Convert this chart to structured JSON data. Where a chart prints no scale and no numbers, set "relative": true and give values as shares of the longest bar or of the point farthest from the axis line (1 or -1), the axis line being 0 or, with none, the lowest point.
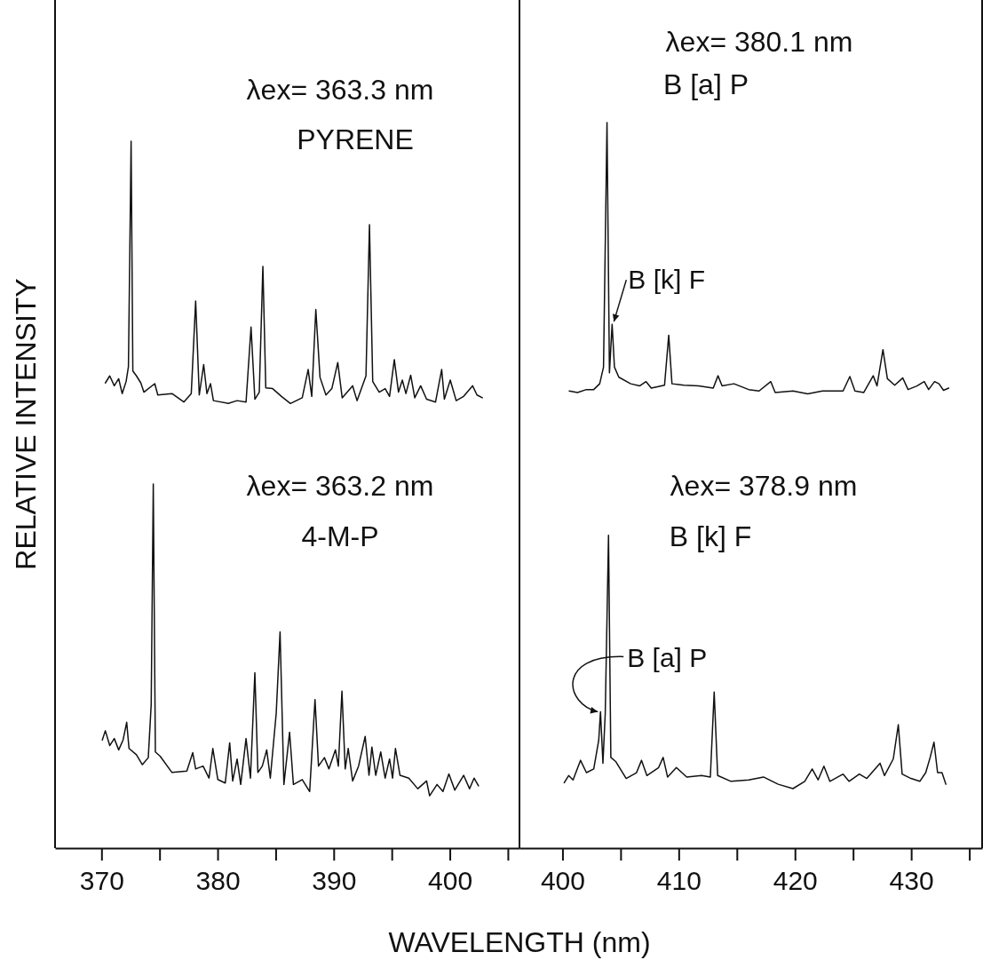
{
  "chart_data": [
    {
      "type": "line",
      "xlabel": "WAVELENGTH (nm)",
      "ylabel": "RELATIVE INTENSITY",
      "relative": true,
      "xlim": [
        366.0,
        406.0
      ],
      "xticks": [
        370,
        {
          "value": 375,
          "label": null
        },
        380,
        {
          "value": 385,
          "label": null
        },
        390,
        {
          "value": 395,
          "label": null
        },
        400,
        {
          "value": 405,
          "label": null
        }
      ],
      "annotations": [
        "λex= 363.3 nm",
        "λex= 363.2 nm"
      ],
      "series": [
        {
          "name": "PYRENE",
          "color": "#111111",
          "x": [
            370.33,
            370.71,
            371.1,
            371.48,
            371.78,
            372.12,
            372.32,
            372.55,
            372.7,
            373.01,
            373.39,
            373.65,
            374.59,
            374.85,
            376.07,
            377.09,
            377.73,
            378.11,
            378.42,
            378.8,
            379.08,
            379.39,
            379.64,
            380.92,
            381.68,
            382.45,
            382.88,
            383.21,
            383.59,
            383.9,
            384.15,
            384.74,
            385.5,
            386.27,
            387.29,
            387.8,
            388.11,
            388.46,
            388.82,
            389.33,
            389.84,
            390.35,
            390.73,
            391.63,
            392.01,
            392.78,
            393.08,
            393.36,
            393.92,
            394.43,
            394.81,
            395.22,
            395.58,
            395.91,
            396.22,
            396.63,
            396.98,
            397.49,
            398.0,
            398.77,
            399.3,
            399.53,
            400.04,
            400.55,
            401.19,
            401.96,
            402.34,
            402.8
          ],
          "values": [
            0.658,
            0.668,
            0.654,
            0.664,
            0.643,
            0.66,
            0.681,
            1.0,
            0.675,
            0.668,
            0.658,
            0.645,
            0.657,
            0.641,
            0.643,
            0.631,
            0.643,
            0.774,
            0.641,
            0.684,
            0.643,
            0.657,
            0.633,
            0.629,
            0.633,
            0.631,
            0.737,
            0.635,
            0.645,
            0.823,
            0.651,
            0.65,
            0.639,
            0.629,
            0.637,
            0.677,
            0.639,
            0.762,
            0.666,
            0.641,
            0.65,
            0.687,
            0.637,
            0.654,
            0.633,
            0.668,
            0.882,
            0.66,
            0.645,
            0.65,
            0.639,
            0.691,
            0.645,
            0.662,
            0.643,
            0.669,
            0.637,
            0.654,
            0.635,
            0.631,
            0.677,
            0.635,
            0.662,
            0.633,
            0.639,
            0.654,
            0.641,
            0.637
          ]
        },
        {
          "name": "4-M-P",
          "color": "#111111",
          "x": [
            370.07,
            370.33,
            370.71,
            371.1,
            371.48,
            371.86,
            372.17,
            372.37,
            373.01,
            373.52,
            374.03,
            374.28,
            374.46,
            374.64,
            375.05,
            376.07,
            377.35,
            377.86,
            378.11,
            378.75,
            379.26,
            379.59,
            380.02,
            380.66,
            381.04,
            381.3,
            381.68,
            381.99,
            382.45,
            382.83,
            383.21,
            383.47,
            383.85,
            384.23,
            384.54,
            385.05,
            385.38,
            385.71,
            386.2,
            386.53,
            387.29,
            387.93,
            388.39,
            388.69,
            389.2,
            389.59,
            390.15,
            390.4,
            390.71,
            390.99,
            391.25,
            391.63,
            392.14,
            392.71,
            393.04,
            393.29,
            393.62,
            394.05,
            394.43,
            394.81,
            395.07,
            395.32,
            395.71,
            396.47,
            397.24,
            398.0,
            398.26,
            398.9,
            399.41,
            399.92,
            400.43,
            401.19,
            401.7,
            402.09,
            402.47
          ],
          "values": [
            0.153,
            0.166,
            0.145,
            0.155,
            0.139,
            0.153,
            0.178,
            0.141,
            0.132,
            0.118,
            0.128,
            0.203,
            0.515,
            0.136,
            0.13,
            0.107,
            0.109,
            0.135,
            0.112,
            0.116,
            0.099,
            0.141,
            0.097,
            0.092,
            0.149,
            0.095,
            0.126,
            0.09,
            0.155,
            0.099,
            0.248,
            0.107,
            0.116,
            0.139,
            0.099,
            0.191,
            0.306,
            0.09,
            0.164,
            0.09,
            0.097,
            0.08,
            0.21,
            0.116,
            0.128,
            0.112,
            0.139,
            0.116,
            0.222,
            0.112,
            0.141,
            0.095,
            0.116,
            0.158,
            0.103,
            0.143,
            0.103,
            0.136,
            0.099,
            0.126,
            0.099,
            0.141,
            0.103,
            0.099,
            0.084,
            0.095,
            0.074,
            0.09,
            0.08,
            0.105,
            0.082,
            0.103,
            0.084,
            0.099,
            0.088
          ]
        }
      ]
    },
    {
      "type": "line",
      "relative": true,
      "xlim": [
        396.3,
        436.1
      ],
      "xticks": [
        400,
        {
          "value": 405,
          "label": null
        },
        410,
        {
          "value": 415,
          "label": null
        },
        420,
        {
          "value": 425,
          "label": null
        },
        430,
        {
          "value": 435,
          "label": null
        }
      ],
      "annotations": [
        "λex= 380.1 nm",
        "λex= 378.9 nm",
        {
          "text": "B [k] F",
          "x": 404.27,
          "y": 0.722
        },
        {
          "text": "B [a] P",
          "x": 403.27,
          "y": 0.188
        }
      ],
      "series": [
        {
          "name": "B [a] P",
          "color": "#111111",
          "x": [
            400.58,
            401.29,
            402.06,
            402.69,
            403.2,
            403.53,
            403.83,
            404.04,
            404.27,
            404.47,
            404.85,
            405.87,
            406.63,
            407.19,
            407.64,
            408.78,
            409.14,
            409.42,
            410.44,
            411.7,
            412.97,
            413.38,
            413.73,
            414.75,
            416.02,
            416.91,
            417.92,
            418.3,
            419.83,
            421.1,
            422.36,
            424.14,
            424.72,
            425.16,
            425.92,
            426.73,
            427.06,
            427.57,
            427.95,
            428.58,
            429.27,
            429.73,
            430.49,
            431.12,
            431.5,
            432.01,
            432.39,
            432.78,
            433.23
          ],
          "values": [
            0.63,
            0.628,
            0.632,
            0.632,
            0.64,
            0.663,
            1.0,
            0.655,
            0.722,
            0.663,
            0.649,
            0.64,
            0.637,
            0.643,
            0.634,
            0.638,
            0.707,
            0.64,
            0.638,
            0.637,
            0.634,
            0.651,
            0.637,
            0.64,
            0.632,
            0.63,
            0.643,
            0.628,
            0.63,
            0.626,
            0.63,
            0.63,
            0.65,
            0.63,
            0.628,
            0.651,
            0.637,
            0.687,
            0.647,
            0.638,
            0.648,
            0.632,
            0.637,
            0.643,
            0.632,
            0.643,
            0.64,
            0.631,
            0.634
          ]
        },
        {
          "name": "B [k] F",
          "color": "#111111",
          "x": [
            400.15,
            400.53,
            400.91,
            401.55,
            402.06,
            402.69,
            403.12,
            403.27,
            403.48,
            403.68,
            403.96,
            404.16,
            404.6,
            405.48,
            406.37,
            406.8,
            407.26,
            408.27,
            408.66,
            409.04,
            409.8,
            410.69,
            411.96,
            412.72,
            413.05,
            413.35,
            414.5,
            416.02,
            417.29,
            418.56,
            419.83,
            420.84,
            421.48,
            421.99,
            422.49,
            423.0,
            424.14,
            424.65,
            425.54,
            426.18,
            427.32,
            427.7,
            428.46,
            428.89,
            429.22,
            429.98,
            430.74,
            431.25,
            431.63,
            431.96,
            432.27,
            432.65,
            432.98
          ],
          "values": [
            0.09,
            0.1,
            0.094,
            0.121,
            0.104,
            0.109,
            0.149,
            0.188,
            0.117,
            0.186,
            0.431,
            0.125,
            0.119,
            0.096,
            0.104,
            0.121,
            0.1,
            0.111,
            0.125,
            0.098,
            0.111,
            0.098,
            0.1,
            0.098,
            0.215,
            0.1,
            0.092,
            0.094,
            0.098,
            0.088,
            0.082,
            0.092,
            0.109,
            0.094,
            0.113,
            0.092,
            0.102,
            0.092,
            0.102,
            0.096,
            0.117,
            0.1,
            0.123,
            0.17,
            0.102,
            0.096,
            0.092,
            0.104,
            0.125,
            0.146,
            0.104,
            0.104,
            0.088
          ]
        }
      ]
    }
  ]
}
